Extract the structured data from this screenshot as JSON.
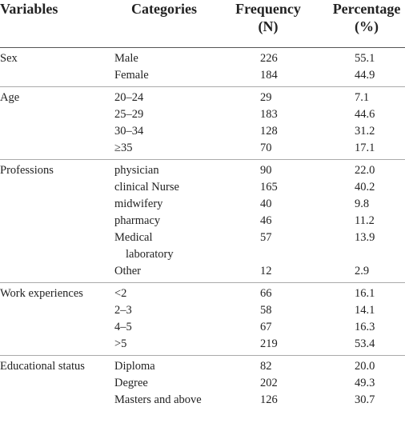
{
  "header": {
    "columns": [
      [
        "Variables"
      ],
      [
        "Categories"
      ],
      [
        "Frequency",
        "(N)"
      ],
      [
        "Percentage",
        "(%)"
      ]
    ]
  },
  "table": {
    "groups": [
      {
        "variable": "Sex",
        "rows": [
          [
            "Male",
            "226",
            "55.1"
          ],
          [
            "Female",
            "184",
            "44.9"
          ]
        ]
      },
      {
        "variable": "Age",
        "rows": [
          [
            "20–24",
            "29",
            "7.1"
          ],
          [
            "25–29",
            "183",
            "44.6"
          ],
          [
            "30–34",
            "128",
            "31.2"
          ],
          [
            "≥35",
            "70",
            "17.1"
          ]
        ]
      },
      {
        "variable": "Professions",
        "rows": [
          [
            "physician",
            "90",
            "22.0"
          ],
          [
            "clinical Nurse",
            "165",
            "40.2"
          ],
          [
            "midwifery",
            "40",
            "9.8"
          ],
          [
            "pharmacy",
            "46",
            "11.2"
          ],
          [
            "Medical laboratory",
            "57",
            "13.9"
          ],
          [
            "Other",
            "12",
            "2.9"
          ]
        ]
      },
      {
        "variable": "Work experiences",
        "rows": [
          [
            "<2",
            "66",
            "16.1"
          ],
          [
            "2–3",
            "58",
            "14.1"
          ],
          [
            "4–5",
            "67",
            "16.3"
          ],
          [
            ">5",
            "219",
            "53.4"
          ]
        ]
      },
      {
        "variable": "Educational status",
        "rows": [
          [
            "Diploma",
            "82",
            "20.0"
          ],
          [
            "Degree",
            "202",
            "49.3"
          ],
          [
            "Masters and above",
            "126",
            "30.7"
          ]
        ]
      }
    ]
  }
}
